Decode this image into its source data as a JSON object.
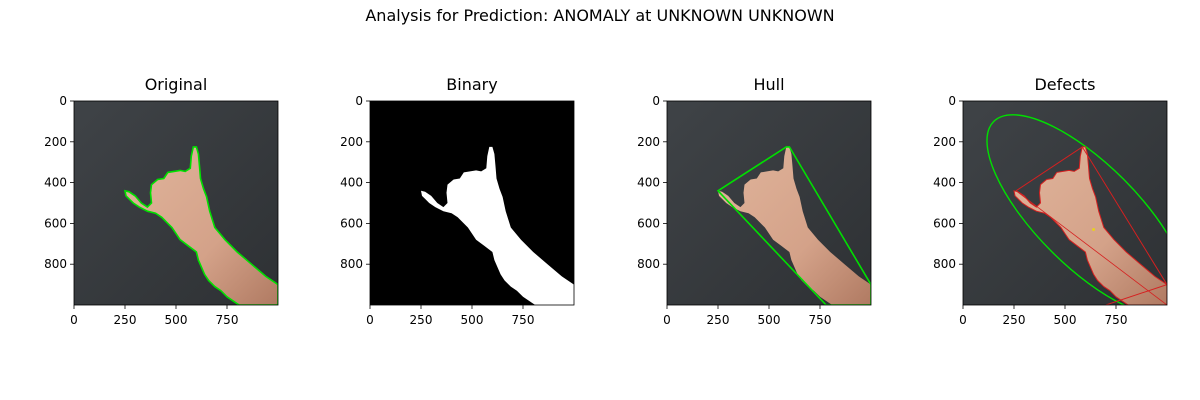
{
  "figure": {
    "suptitle": "Analysis for Prediction: ANOMALY at UNKNOWN UNKNOWN"
  },
  "colors": {
    "background": "#3a3d40",
    "contour": "#00e000",
    "defect_lines": "#d62020",
    "defect_point": "#e8d020",
    "hand": "#d4a289",
    "binary_fg": "#ffffff",
    "binary_bg": "#000000"
  },
  "chart_data": [
    {
      "type": "image",
      "title": "Original",
      "xlim": [
        0,
        1000
      ],
      "ylim": [
        1000,
        0
      ],
      "xticks": [
        0,
        250,
        500,
        750
      ],
      "yticks": [
        0,
        200,
        400,
        600,
        800
      ],
      "overlay": "contour"
    },
    {
      "type": "image",
      "title": "Binary",
      "xlim": [
        0,
        1000
      ],
      "ylim": [
        1000,
        0
      ],
      "xticks": [
        0,
        250,
        500,
        750
      ],
      "yticks": [
        0,
        200,
        400,
        600,
        800
      ],
      "overlay": "mask"
    },
    {
      "type": "image",
      "title": "Hull",
      "xlim": [
        0,
        1000
      ],
      "ylim": [
        1000,
        0
      ],
      "xticks": [
        0,
        250,
        500,
        750
      ],
      "yticks": [
        0,
        200,
        400,
        600,
        800
      ],
      "overlay": "hull"
    },
    {
      "type": "image",
      "title": "Defects",
      "xlim": [
        0,
        1000
      ],
      "ylim": [
        1000,
        0
      ],
      "xticks": [
        0,
        250,
        500,
        750
      ],
      "yticks": [
        0,
        200,
        400,
        600,
        800
      ],
      "overlay": "defects",
      "ellipse": {
        "center": [
          610,
          560
        ],
        "semi_major": 650,
        "semi_minor": 250,
        "angle_deg": 45
      },
      "defect_point": [
        640,
        630
      ]
    }
  ]
}
